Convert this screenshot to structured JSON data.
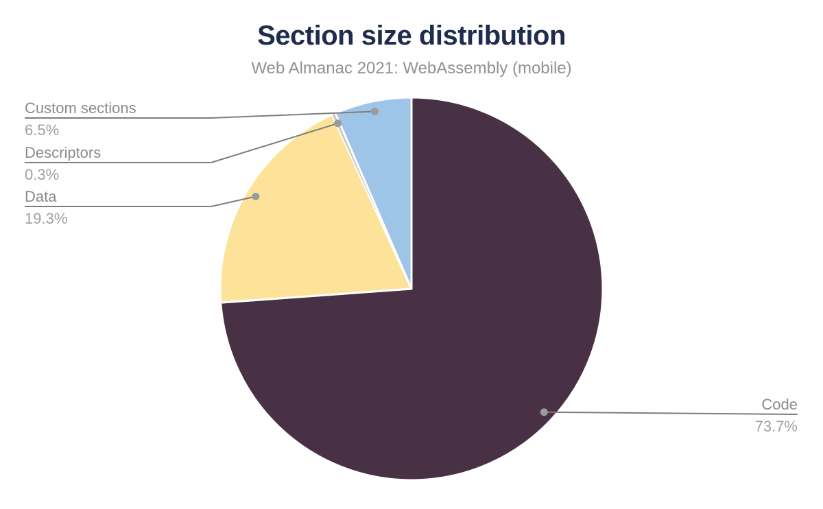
{
  "chart_data": {
    "type": "pie",
    "title": "Section size distribution",
    "subtitle": "Web Almanac 2021: WebAssembly (mobile)",
    "legend": "none",
    "note": "segments listed in clockwise drawing order starting at 12 o'clock",
    "total_percent": 99.8,
    "segments": [
      {
        "label": "Code",
        "value": 73.7,
        "display": "73.7%",
        "color": "#483144",
        "label_side": "right"
      },
      {
        "label": "Data",
        "value": 19.3,
        "display": "19.3%",
        "color": "#fde39a",
        "label_side": "left"
      },
      {
        "label": "Descriptors",
        "value": 0.3,
        "display": "0.3%",
        "color": "#c6c6c6",
        "label_side": "left"
      },
      {
        "label": "Custom sections",
        "value": 6.5,
        "display": "6.5%",
        "color": "#9ec5e8",
        "label_side": "left"
      }
    ],
    "style": {
      "title_color": "#1e2c4d",
      "subtitle_color": "#8f9194",
      "label_name_color": "#8b8b8b",
      "label_value_color": "#a0a0a0",
      "connector_color": "#7d7d7d",
      "dot_color": "#9b9b9b",
      "slice_border_color": "#ffffff",
      "background": "#ffffff"
    }
  }
}
